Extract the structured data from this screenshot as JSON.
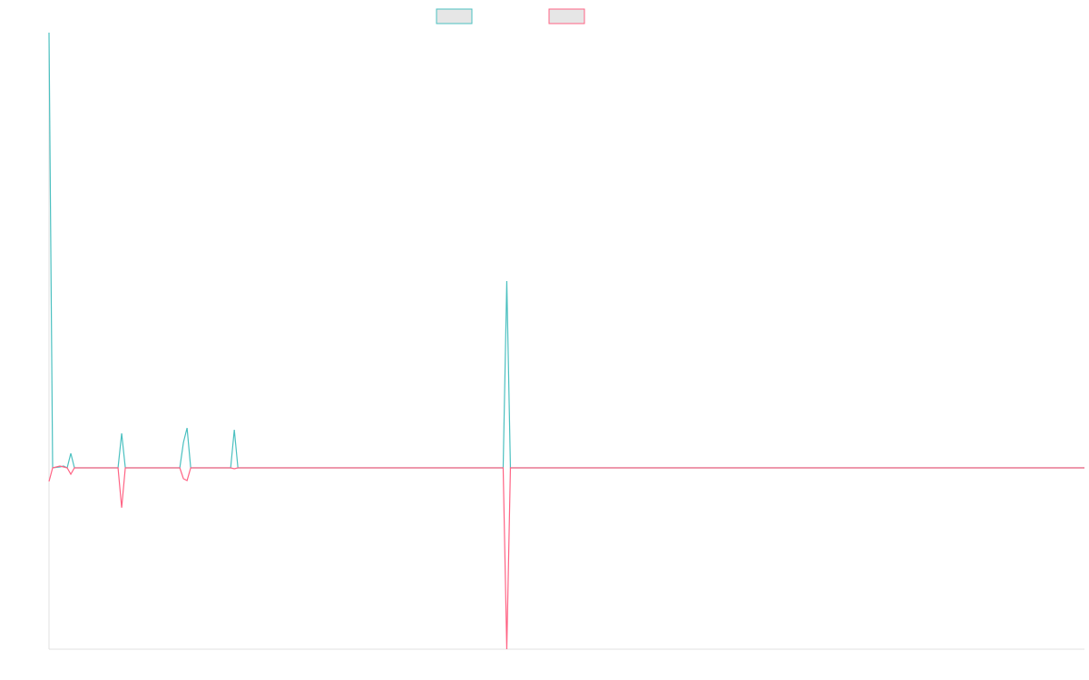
{
  "chart_data": {
    "type": "line",
    "x": [
      0,
      1,
      3,
      4,
      5,
      6,
      7,
      19,
      20,
      21,
      36,
      37,
      38,
      39,
      50,
      51,
      52,
      125,
      126,
      127,
      285
    ],
    "xlim": [
      0,
      285
    ],
    "ylim": [
      -200,
      480
    ],
    "series": [
      {
        "color": "#4bc0c0",
        "values": [
          480,
          0,
          1,
          2,
          0,
          16,
          0,
          0,
          38,
          0,
          0,
          28,
          44,
          0,
          0,
          42,
          0,
          0,
          206,
          0,
          0
        ]
      },
      {
        "color": "#ff6384",
        "values": [
          -15,
          0,
          2,
          1,
          0,
          -7,
          0,
          0,
          -44,
          0,
          0,
          -12,
          -14,
          0,
          0,
          -1,
          0,
          0,
          -200,
          0,
          0
        ]
      }
    ],
    "legend": "top"
  }
}
